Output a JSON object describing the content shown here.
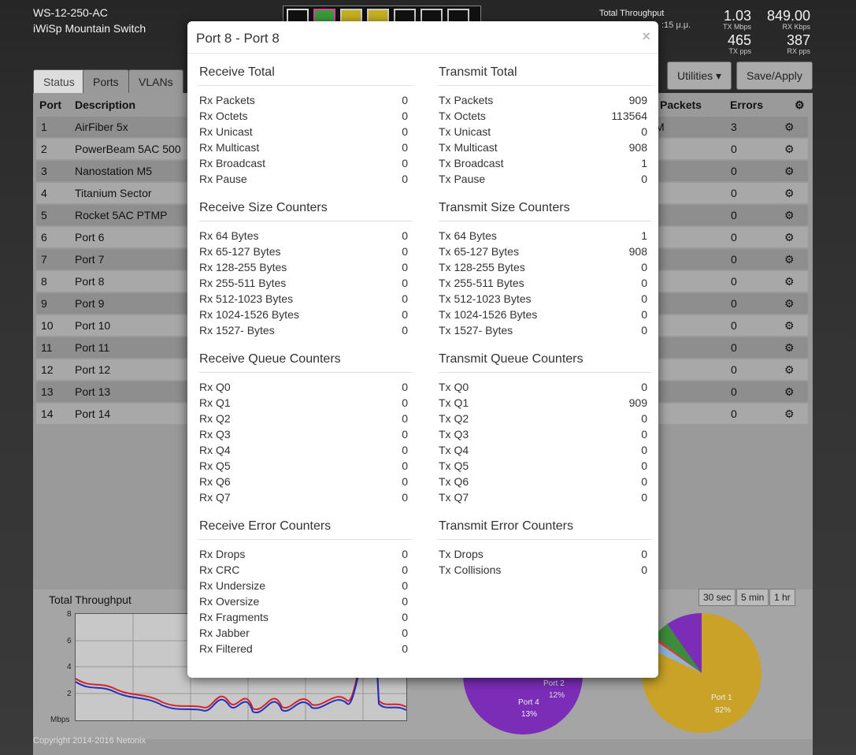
{
  "header": {
    "model": "WS-12-250-AC",
    "name": "iWiSp Mountain Switch",
    "throughput_label": "Total Throughput",
    "throughput_time": ":15 μ.μ.",
    "stats": [
      {
        "value": "1.03",
        "label": "TX Mbps"
      },
      {
        "value": "849.00",
        "label": "RX Kbps"
      },
      {
        "value": "465",
        "label": "TX pps"
      },
      {
        "value": "387",
        "label": "RX pps"
      }
    ]
  },
  "tabs": [
    "Status",
    "Ports",
    "VLANs"
  ],
  "buttons": {
    "utilities": "Utilities ▾",
    "save": "Save/Apply"
  },
  "table": {
    "headers": {
      "port": "Port",
      "description": "Description",
      "packets": "Packets",
      "errors": "Errors"
    },
    "rows": [
      {
        "port": "1",
        "desc": "AirFiber 5x",
        "packets": "M",
        "errors": "3"
      },
      {
        "port": "2",
        "desc": "PowerBeam 5AC 500",
        "packets": "",
        "errors": "0"
      },
      {
        "port": "3",
        "desc": "Nanostation M5",
        "packets": "",
        "errors": "0"
      },
      {
        "port": "4",
        "desc": "Titanium Sector",
        "packets": "",
        "errors": "0"
      },
      {
        "port": "5",
        "desc": "Rocket 5AC PTMP",
        "packets": "",
        "errors": "0"
      },
      {
        "port": "6",
        "desc": "Port 6",
        "packets": "",
        "errors": "0"
      },
      {
        "port": "7",
        "desc": "Port 7",
        "packets": "",
        "errors": "0"
      },
      {
        "port": "8",
        "desc": "Port 8",
        "packets": "",
        "errors": "0"
      },
      {
        "port": "9",
        "desc": "Port 9",
        "packets": "",
        "errors": "0"
      },
      {
        "port": "10",
        "desc": "Port 10",
        "packets": "",
        "errors": "0"
      },
      {
        "port": "11",
        "desc": "Port 11",
        "packets": "",
        "errors": "0"
      },
      {
        "port": "12",
        "desc": "Port 12",
        "packets": "",
        "errors": "0"
      },
      {
        "port": "13",
        "desc": "Port 13",
        "packets": "",
        "errors": "0"
      },
      {
        "port": "14",
        "desc": "Port 14",
        "packets": "",
        "errors": "0"
      }
    ]
  },
  "chart": {
    "title": "Total Throughput",
    "yticks": [
      "8",
      "6",
      "4",
      "2"
    ],
    "ylabel": "Mbps",
    "ranges": [
      "30 sec",
      "5 min",
      "1 hr"
    ],
    "pie_labels": [
      {
        "name": "Port 2",
        "pct": "12%"
      },
      {
        "name": "Port 4",
        "pct": "13%"
      },
      {
        "name": "Port 1",
        "pct": "82%"
      }
    ]
  },
  "copyright": "Copyright 2014-2016 Netonix",
  "modal": {
    "title": "Port 8 - Port 8",
    "close": "×",
    "left": [
      {
        "title": "Receive Total",
        "items": [
          {
            "k": "Rx Packets",
            "v": "0"
          },
          {
            "k": "Rx Octets",
            "v": "0"
          },
          {
            "k": "Rx Unicast",
            "v": "0"
          },
          {
            "k": "Rx Multicast",
            "v": "0"
          },
          {
            "k": "Rx Broadcast",
            "v": "0"
          },
          {
            "k": "Rx Pause",
            "v": "0"
          }
        ]
      },
      {
        "title": "Receive Size Counters",
        "items": [
          {
            "k": "Rx 64 Bytes",
            "v": "0"
          },
          {
            "k": "Rx 65-127 Bytes",
            "v": "0"
          },
          {
            "k": "Rx 128-255 Bytes",
            "v": "0"
          },
          {
            "k": "Rx 255-511 Bytes",
            "v": "0"
          },
          {
            "k": "Rx 512-1023 Bytes",
            "v": "0"
          },
          {
            "k": "Rx 1024-1526 Bytes",
            "v": "0"
          },
          {
            "k": "Rx 1527- Bytes",
            "v": "0"
          }
        ]
      },
      {
        "title": "Receive Queue Counters",
        "items": [
          {
            "k": "Rx Q0",
            "v": "0"
          },
          {
            "k": "Rx Q1",
            "v": "0"
          },
          {
            "k": "Rx Q2",
            "v": "0"
          },
          {
            "k": "Rx Q3",
            "v": "0"
          },
          {
            "k": "Rx Q4",
            "v": "0"
          },
          {
            "k": "Rx Q5",
            "v": "0"
          },
          {
            "k": "Rx Q6",
            "v": "0"
          },
          {
            "k": "Rx Q7",
            "v": "0"
          }
        ]
      },
      {
        "title": "Receive Error Counters",
        "items": [
          {
            "k": "Rx Drops",
            "v": "0"
          },
          {
            "k": "Rx CRC",
            "v": "0"
          },
          {
            "k": "Rx Undersize",
            "v": "0"
          },
          {
            "k": "Rx Oversize",
            "v": "0"
          },
          {
            "k": "Rx Fragments",
            "v": "0"
          },
          {
            "k": "Rx Jabber",
            "v": "0"
          },
          {
            "k": "Rx Filtered",
            "v": "0"
          }
        ]
      }
    ],
    "right": [
      {
        "title": "Transmit Total",
        "items": [
          {
            "k": "Tx Packets",
            "v": "909"
          },
          {
            "k": "Tx Octets",
            "v": "113564"
          },
          {
            "k": "Tx Unicast",
            "v": "0"
          },
          {
            "k": "Tx Multicast",
            "v": "908"
          },
          {
            "k": "Tx Broadcast",
            "v": "1"
          },
          {
            "k": "Tx Pause",
            "v": "0"
          }
        ]
      },
      {
        "title": "Transmit Size Counters",
        "items": [
          {
            "k": "Tx 64 Bytes",
            "v": "1"
          },
          {
            "k": "Tx 65-127 Bytes",
            "v": "908"
          },
          {
            "k": "Tx 128-255 Bytes",
            "v": "0"
          },
          {
            "k": "Tx 255-511 Bytes",
            "v": "0"
          },
          {
            "k": "Tx 512-1023 Bytes",
            "v": "0"
          },
          {
            "k": "Tx 1024-1526 Bytes",
            "v": "0"
          },
          {
            "k": "Tx 1527- Bytes",
            "v": "0"
          }
        ]
      },
      {
        "title": "Transmit Queue Counters",
        "items": [
          {
            "k": "Tx Q0",
            "v": "0"
          },
          {
            "k": "Tx Q1",
            "v": "909"
          },
          {
            "k": "Tx Q2",
            "v": "0"
          },
          {
            "k": "Tx Q3",
            "v": "0"
          },
          {
            "k": "Tx Q4",
            "v": "0"
          },
          {
            "k": "Tx Q5",
            "v": "0"
          },
          {
            "k": "Tx Q6",
            "v": "0"
          },
          {
            "k": "Tx Q7",
            "v": "0"
          }
        ]
      },
      {
        "title": "Transmit Error Counters",
        "items": [
          {
            "k": "Tx Drops",
            "v": "0"
          },
          {
            "k": "Tx Collisions",
            "v": "0"
          }
        ]
      }
    ]
  }
}
